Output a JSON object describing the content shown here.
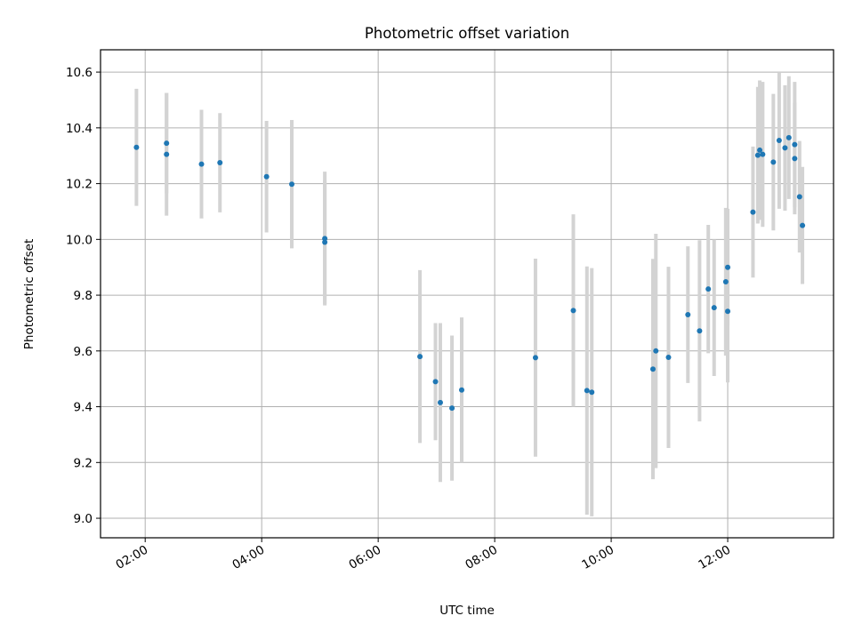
{
  "chart_data": {
    "type": "scatter",
    "title": "Photometric offset variation",
    "xlabel": "UTC time",
    "ylabel": "Photometric offset",
    "x_axis": "time of day (HH:MM UTC)",
    "xlim": [
      "01:14",
      "13:49"
    ],
    "ylim": [
      8.93,
      10.68
    ],
    "xticks": [
      "02:00",
      "04:00",
      "06:00",
      "08:00",
      "10:00",
      "12:00"
    ],
    "yticks": [
      "9.0",
      "9.2",
      "9.4",
      "9.6",
      "9.8",
      "10.0",
      "10.2",
      "10.4",
      "10.6"
    ],
    "grid": true,
    "legend": "none",
    "colors": {
      "point": "#1f77b4",
      "errorbar": "#d3d3d3",
      "grid": "#b0b0b0"
    },
    "series": [
      {
        "points": [
          {
            "x": "01:51",
            "y": 10.33,
            "err": 0.21
          },
          {
            "x": "02:22",
            "y": 10.345,
            "err": 0.18
          },
          {
            "x": "02:22",
            "y": 10.305,
            "err": 0.22
          },
          {
            "x": "02:58",
            "y": 10.27,
            "err": 0.195
          },
          {
            "x": "03:17",
            "y": 10.275,
            "err": 0.178
          },
          {
            "x": "04:05",
            "y": 10.225,
            "err": 0.2
          },
          {
            "x": "04:31",
            "y": 10.198,
            "err": 0.23
          },
          {
            "x": "05:05",
            "y": 10.003,
            "err": 0.24
          },
          {
            "x": "05:05",
            "y": 9.99,
            "err": 0.222
          },
          {
            "x": "06:43",
            "y": 9.58,
            "err": 0.31
          },
          {
            "x": "06:59",
            "y": 9.49,
            "err": 0.21
          },
          {
            "x": "07:04",
            "y": 9.415,
            "err": 0.285
          },
          {
            "x": "07:16",
            "y": 9.395,
            "err": 0.26
          },
          {
            "x": "07:26",
            "y": 9.46,
            "err": 0.26
          },
          {
            "x": "08:42",
            "y": 9.576,
            "err": 0.355
          },
          {
            "x": "09:21",
            "y": 9.745,
            "err": 0.345
          },
          {
            "x": "09:35",
            "y": 9.458,
            "err": 0.445
          },
          {
            "x": "09:40",
            "y": 9.452,
            "err": 0.445
          },
          {
            "x": "10:43",
            "y": 9.535,
            "err": 0.395
          },
          {
            "x": "10:46",
            "y": 9.6,
            "err": 0.42
          },
          {
            "x": "10:59",
            "y": 9.577,
            "err": 0.325
          },
          {
            "x": "11:19",
            "y": 9.73,
            "err": 0.245
          },
          {
            "x": "11:31",
            "y": 9.672,
            "err": 0.325
          },
          {
            "x": "11:40",
            "y": 9.822,
            "err": 0.23
          },
          {
            "x": "11:46",
            "y": 9.755,
            "err": 0.245
          },
          {
            "x": "11:58",
            "y": 9.848,
            "err": 0.265
          },
          {
            "x": "12:00",
            "y": 9.9,
            "err": 0.21
          },
          {
            "x": "12:00",
            "y": 9.742,
            "err": 0.255
          },
          {
            "x": "12:26",
            "y": 10.098,
            "err": 0.235
          },
          {
            "x": "12:31",
            "y": 10.302,
            "err": 0.245
          },
          {
            "x": "12:33",
            "y": 10.32,
            "err": 0.25
          },
          {
            "x": "12:36",
            "y": 10.305,
            "err": 0.26
          },
          {
            "x": "12:47",
            "y": 10.277,
            "err": 0.245
          },
          {
            "x": "12:53",
            "y": 10.355,
            "err": 0.245
          },
          {
            "x": "12:59",
            "y": 10.328,
            "err": 0.225
          },
          {
            "x": "13:03",
            "y": 10.365,
            "err": 0.22
          },
          {
            "x": "13:09",
            "y": 10.29,
            "err": 0.2
          },
          {
            "x": "13:09",
            "y": 10.34,
            "err": 0.225
          },
          {
            "x": "13:14",
            "y": 10.153,
            "err": 0.2
          },
          {
            "x": "13:17",
            "y": 10.05,
            "err": 0.21
          }
        ]
      }
    ]
  }
}
